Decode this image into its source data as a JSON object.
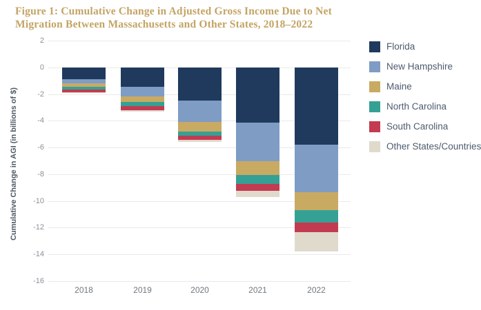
{
  "title": {
    "line1": "Figure 1: Cumulative Change in Adjusted Gross Income Due to Net",
    "line2": "Migration Between Massachusetts and Other States, 2018–2022"
  },
  "chart_data": {
    "type": "bar",
    "stacked": true,
    "title": "Figure 1: Cumulative Change in Adjusted Gross Income Due to Net Migration Between Massachusetts and Other States, 2018–2022",
    "xlabel": "",
    "ylabel": "Cumulative Change in AGI (in billions of $)",
    "categories": [
      "2018",
      "2019",
      "2020",
      "2021",
      "2022"
    ],
    "series": [
      {
        "name": "Florida",
        "color": "#1f3a5c",
        "values": [
          -0.9,
          -1.45,
          -2.5,
          -4.15,
          -5.8
        ]
      },
      {
        "name": "New Hampshire",
        "color": "#7f9cc5",
        "values": [
          -0.3,
          -0.75,
          -1.6,
          -2.9,
          -3.55
        ]
      },
      {
        "name": "Maine",
        "color": "#c9aa62",
        "values": [
          -0.25,
          -0.4,
          -0.7,
          -1.0,
          -1.35
        ]
      },
      {
        "name": "North Carolina",
        "color": "#35a195",
        "values": [
          -0.2,
          -0.3,
          -0.3,
          -0.7,
          -0.9
        ]
      },
      {
        "name": "South Carolina",
        "color": "#c23b50",
        "values": [
          -0.2,
          -0.3,
          -0.35,
          -0.5,
          -0.75
        ]
      },
      {
        "name": "Other States/Countries",
        "color": "#e0dacd",
        "values": [
          -0.05,
          -0.1,
          -0.15,
          -0.45,
          -1.45
        ]
      }
    ],
    "cumulative_totals": [
      -1.9,
      -3.3,
      -5.6,
      -9.7,
      -13.8
    ],
    "ylim": [
      -16,
      2
    ],
    "yticks": [
      2,
      0,
      -2,
      -4,
      -6,
      -8,
      -10,
      -12,
      -14,
      -16
    ],
    "grid": true,
    "legend_position": "right"
  }
}
